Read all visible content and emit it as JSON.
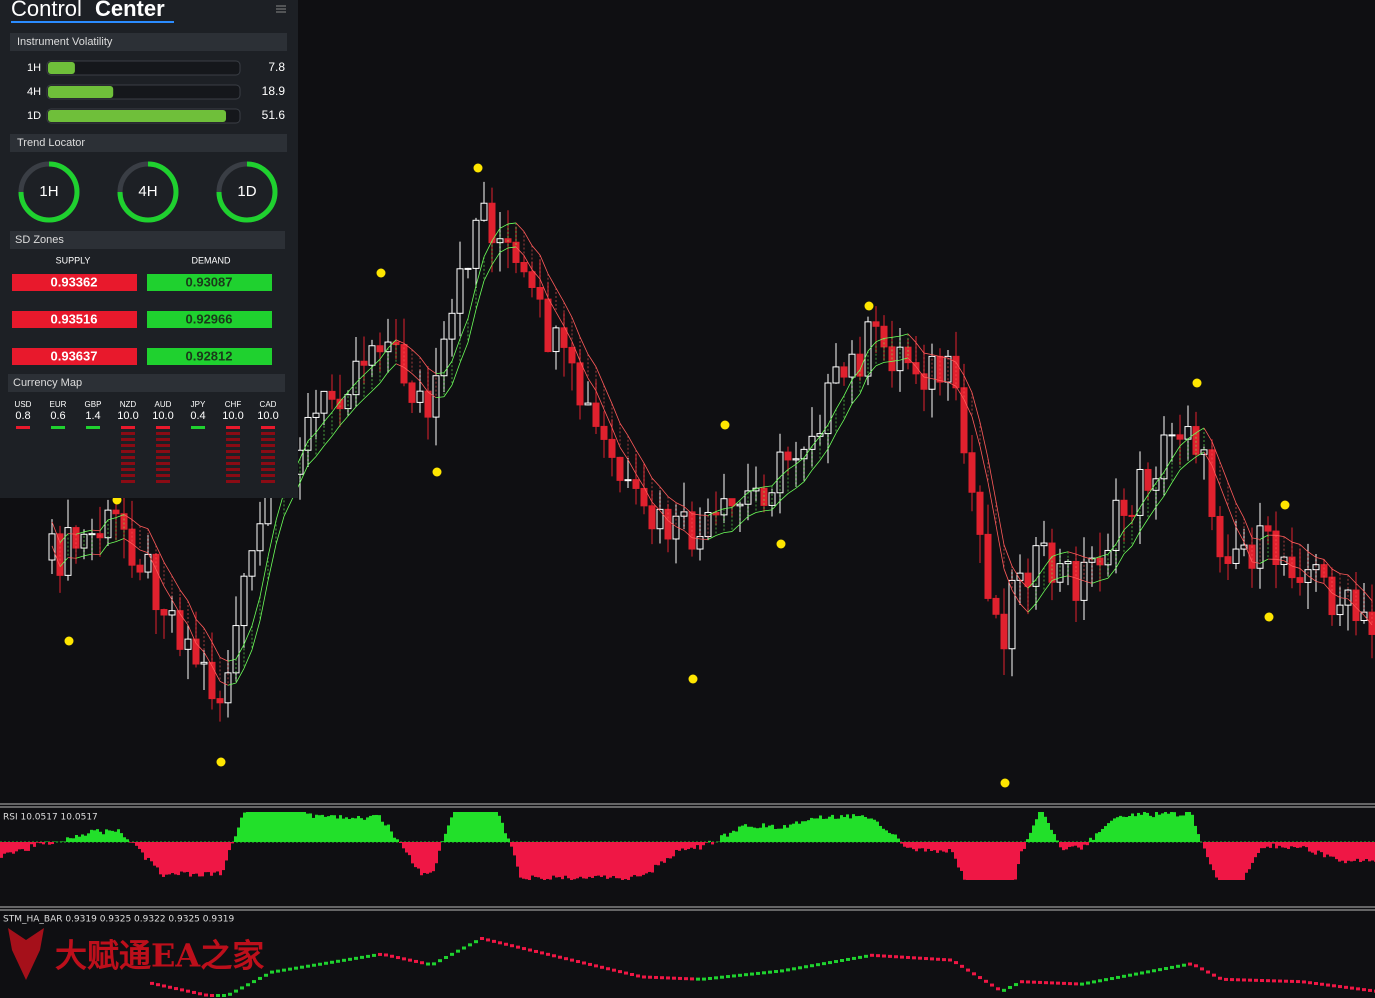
{
  "panel": {
    "title": {
      "light": "Control",
      "bold": "Center"
    },
    "volatility": {
      "heading": "Instrument Volatility",
      "rows": [
        {
          "label": "1H",
          "value": "7.8"
        },
        {
          "label": "4H",
          "value": "18.9"
        },
        {
          "label": "1D",
          "value": "51.6"
        }
      ]
    },
    "trend": {
      "heading": "Trend Locator",
      "items": [
        "1H",
        "4H",
        "1D"
      ]
    },
    "sd_zones": {
      "heading": "SD Zones",
      "supply_label": "SUPPLY",
      "demand_label": "DEMAND",
      "supply": [
        "0.93362",
        "0.93516",
        "0.93637"
      ],
      "demand": [
        "0.93087",
        "0.92966",
        "0.92812"
      ]
    },
    "currency_map": {
      "heading": "Currency Map",
      "items": [
        {
          "code": "USD",
          "value": "0.8",
          "color": "#e8192c"
        },
        {
          "code": "EUR",
          "value": "0.6",
          "color": "#1fd12f"
        },
        {
          "code": "GBP",
          "value": "1.4",
          "color": "#1fd12f"
        },
        {
          "code": "NZD",
          "value": "10.0",
          "color": "#e8192c"
        },
        {
          "code": "AUD",
          "value": "10.0",
          "color": "#e8192c"
        },
        {
          "code": "JPY",
          "value": "0.4",
          "color": "#1fd12f"
        },
        {
          "code": "CHF",
          "value": "10.0",
          "color": "#e8192c"
        },
        {
          "code": "CAD",
          "value": "10.0",
          "color": "#e8192c"
        }
      ]
    }
  },
  "indicators": {
    "rsi": "RSI 10.0517 10.0517",
    "ha": "STM_HA_BAR 0.9319 0.9325 0.9322 0.9325 0.9319"
  },
  "watermark": "大赋通EA之家"
}
